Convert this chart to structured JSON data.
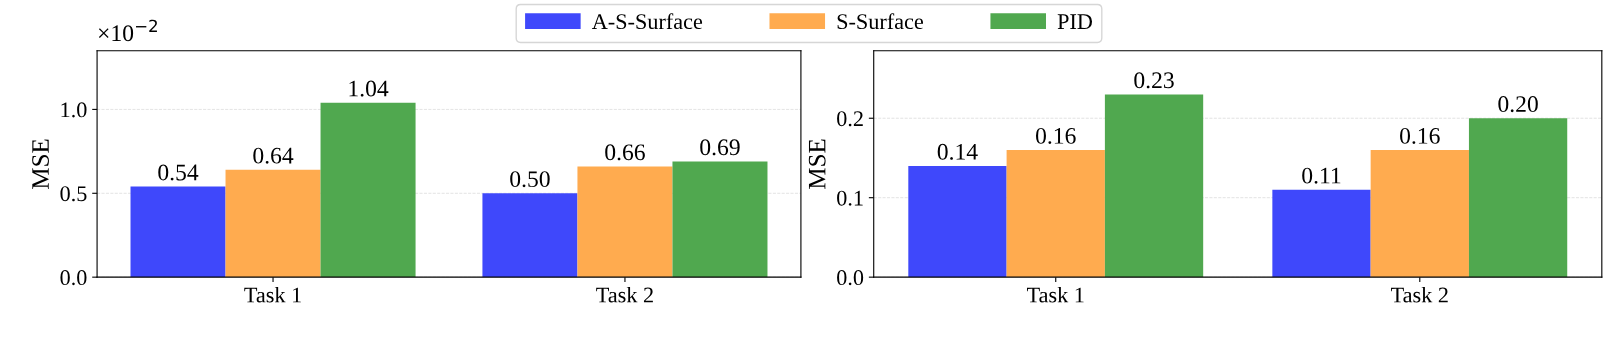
{
  "chart_data": [
    {
      "type": "bar",
      "ylabel": "MSE",
      "categories": [
        "Task 1",
        "Task 2"
      ],
      "ylim": [
        0,
        1.35
      ],
      "yticks": [
        {
          "value": 0,
          "label": "0.0"
        },
        {
          "value": 0.5,
          "label": "0.5"
        },
        {
          "value": 1,
          "label": "1.0"
        }
      ],
      "grid": "y",
      "legend": "top",
      "annotations": [
        "×10$^{−2}$"
      ],
      "series": [
        {
          "name": "A-S-Surface",
          "color": "#3f48fb",
          "values": [
            0.54,
            0.5
          ],
          "value_labels": [
            "0.54",
            "0.50"
          ]
        },
        {
          "name": "S-Surface",
          "color": "#ffab4f",
          "values": [
            0.64,
            0.66
          ],
          "value_labels": [
            "0.64",
            "0.66"
          ]
        },
        {
          "name": "PID",
          "color": "#50a84f",
          "values": [
            1.04,
            0.69
          ],
          "value_labels": [
            "1.04",
            "0.69"
          ]
        }
      ]
    },
    {
      "type": "bar",
      "ylabel": "MSE",
      "categories": [
        "Task 1",
        "Task 2"
      ],
      "ylim": [
        0,
        0.285
      ],
      "yticks": [
        {
          "value": 0,
          "label": "0.0"
        },
        {
          "value": 0.1,
          "label": "0.1"
        },
        {
          "value": 0.2,
          "label": "0.2"
        }
      ],
      "grid": "y",
      "series": [
        {
          "color": "#3f48fb",
          "values": [
            0.14,
            0.11
          ],
          "value_labels": [
            "0.14",
            "0.11"
          ]
        },
        {
          "color": "#ffab4f",
          "values": [
            0.16,
            0.16
          ],
          "value_labels": [
            "0.16",
            "0.16"
          ]
        },
        {
          "color": "#50a84f",
          "values": [
            0.23,
            0.2
          ],
          "value_labels": [
            "0.23",
            "0.20"
          ]
        }
      ]
    }
  ]
}
